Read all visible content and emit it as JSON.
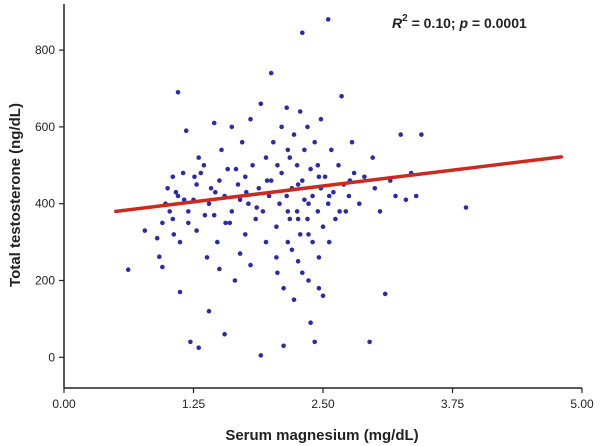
{
  "chart_data": {
    "type": "scatter",
    "title": "",
    "xlabel": "Serum magnesium (mg/dL)",
    "ylabel": "Total testosterone (ng/dL)",
    "xlim": [
      0.0,
      5.0
    ],
    "ylim": [
      -80,
      920
    ],
    "xticks": [
      0.0,
      1.25,
      2.5,
      3.75,
      5.0
    ],
    "xtick_labels": [
      "0.00",
      "1.25",
      "2.50",
      "3.75",
      "5.00"
    ],
    "yticks": [
      0,
      200,
      400,
      600,
      800
    ],
    "ytick_labels": [
      "0",
      "200",
      "400",
      "600",
      "800"
    ],
    "grid": false,
    "legend": "none",
    "annotation": {
      "r2_label": "R",
      "r2_sup": "2",
      "r2_text": " = 0.10; ",
      "p_label": "p",
      "p_text": " = 0.0001"
    },
    "point_color": "#2b2ba8",
    "line_color": "#cc2a1e",
    "regression_line": {
      "x": [
        0.5,
        4.8
      ],
      "y": [
        380,
        522
      ]
    },
    "points": [
      [
        0.62,
        228
      ],
      [
        0.78,
        330
      ],
      [
        0.9,
        310
      ],
      [
        0.92,
        262
      ],
      [
        0.95,
        235
      ],
      [
        0.95,
        350
      ],
      [
        0.98,
        400
      ],
      [
        1.0,
        440
      ],
      [
        1.02,
        380
      ],
      [
        1.05,
        470
      ],
      [
        1.05,
        360
      ],
      [
        1.08,
        430
      ],
      [
        1.1,
        420
      ],
      [
        1.1,
        690
      ],
      [
        1.12,
        170
      ],
      [
        1.12,
        300
      ],
      [
        1.15,
        480
      ],
      [
        1.18,
        590
      ],
      [
        1.2,
        350
      ],
      [
        1.2,
        380
      ],
      [
        1.22,
        40
      ],
      [
        1.25,
        410
      ],
      [
        1.28,
        450
      ],
      [
        1.28,
        330
      ],
      [
        1.3,
        25
      ],
      [
        1.3,
        520
      ],
      [
        1.32,
        480
      ],
      [
        1.35,
        500
      ],
      [
        1.38,
        260
      ],
      [
        1.4,
        120
      ],
      [
        1.4,
        400
      ],
      [
        1.42,
        440
      ],
      [
        1.45,
        610
      ],
      [
        1.45,
        370
      ],
      [
        1.48,
        300
      ],
      [
        1.5,
        230
      ],
      [
        1.5,
        460
      ],
      [
        1.52,
        540
      ],
      [
        1.55,
        420
      ],
      [
        1.55,
        60
      ],
      [
        1.58,
        490
      ],
      [
        1.6,
        350
      ],
      [
        1.62,
        600
      ],
      [
        1.62,
        380
      ],
      [
        1.65,
        200
      ],
      [
        1.68,
        450
      ],
      [
        1.7,
        270
      ],
      [
        1.7,
        410
      ],
      [
        1.72,
        560
      ],
      [
        1.75,
        320
      ],
      [
        1.75,
        470
      ],
      [
        1.78,
        400
      ],
      [
        1.8,
        620
      ],
      [
        1.8,
        240
      ],
      [
        1.82,
        500
      ],
      [
        1.85,
        360
      ],
      [
        1.88,
        440
      ],
      [
        1.9,
        660
      ],
      [
        1.9,
        5
      ],
      [
        1.92,
        380
      ],
      [
        1.95,
        300
      ],
      [
        1.95,
        520
      ],
      [
        1.98,
        420
      ],
      [
        2.0,
        740
      ],
      [
        2.0,
        460
      ],
      [
        2.02,
        560
      ],
      [
        2.05,
        340
      ],
      [
        2.05,
        260
      ],
      [
        2.08,
        400
      ],
      [
        2.1,
        600
      ],
      [
        2.1,
        480
      ],
      [
        2.12,
        180
      ],
      [
        2.12,
        30
      ],
      [
        2.15,
        650
      ],
      [
        2.15,
        420
      ],
      [
        2.18,
        360
      ],
      [
        2.18,
        520
      ],
      [
        2.2,
        280
      ],
      [
        2.2,
        440
      ],
      [
        2.22,
        150
      ],
      [
        2.22,
        580
      ],
      [
        2.25,
        380
      ],
      [
        2.25,
        500
      ],
      [
        2.28,
        320
      ],
      [
        2.28,
        640
      ],
      [
        2.3,
        460
      ],
      [
        2.3,
        220
      ],
      [
        2.3,
        845
      ],
      [
        2.32,
        410
      ],
      [
        2.32,
        540
      ],
      [
        2.35,
        360
      ],
      [
        2.35,
        600
      ],
      [
        2.38,
        490
      ],
      [
        2.38,
        90
      ],
      [
        2.4,
        420
      ],
      [
        2.4,
        300
      ],
      [
        2.42,
        560
      ],
      [
        2.42,
        40
      ],
      [
        2.45,
        380
      ],
      [
        2.45,
        500
      ],
      [
        2.48,
        440
      ],
      [
        2.48,
        620
      ],
      [
        2.5,
        160
      ],
      [
        2.5,
        340
      ],
      [
        2.52,
        470
      ],
      [
        2.55,
        400
      ],
      [
        2.55,
        880
      ],
      [
        2.58,
        540
      ],
      [
        2.6,
        430
      ],
      [
        2.62,
        360
      ],
      [
        2.65,
        500
      ],
      [
        2.68,
        680
      ],
      [
        2.7,
        450
      ],
      [
        2.72,
        380
      ],
      [
        2.75,
        420
      ],
      [
        2.78,
        560
      ],
      [
        2.8,
        480
      ],
      [
        2.85,
        400
      ],
      [
        2.9,
        470
      ],
      [
        2.95,
        40
      ],
      [
        2.98,
        520
      ],
      [
        3.0,
        440
      ],
      [
        3.05,
        380
      ],
      [
        3.1,
        165
      ],
      [
        3.15,
        460
      ],
      [
        3.2,
        420
      ],
      [
        3.25,
        580
      ],
      [
        3.3,
        410
      ],
      [
        3.35,
        480
      ],
      [
        3.4,
        420
      ],
      [
        3.45,
        580
      ],
      [
        3.88,
        390
      ],
      [
        1.06,
        320
      ],
      [
        1.16,
        410
      ],
      [
        1.26,
        470
      ],
      [
        1.36,
        370
      ],
      [
        1.46,
        430
      ],
      [
        1.56,
        350
      ],
      [
        1.66,
        490
      ],
      [
        1.76,
        430
      ],
      [
        1.86,
        390
      ],
      [
        1.96,
        460
      ],
      [
        2.06,
        500
      ],
      [
        2.16,
        380
      ],
      [
        2.26,
        450
      ],
      [
        2.36,
        400
      ],
      [
        2.46,
        470
      ],
      [
        2.56,
        420
      ],
      [
        2.66,
        380
      ],
      [
        2.76,
        460
      ],
      [
        2.16,
        300
      ],
      [
        2.26,
        360
      ],
      [
        2.36,
        320
      ],
      [
        2.46,
        260
      ],
      [
        2.56,
        300
      ],
      [
        2.06,
        220
      ],
      [
        2.26,
        250
      ],
      [
        2.36,
        200
      ],
      [
        2.46,
        180
      ],
      [
        2.16,
        540
      ]
    ]
  }
}
